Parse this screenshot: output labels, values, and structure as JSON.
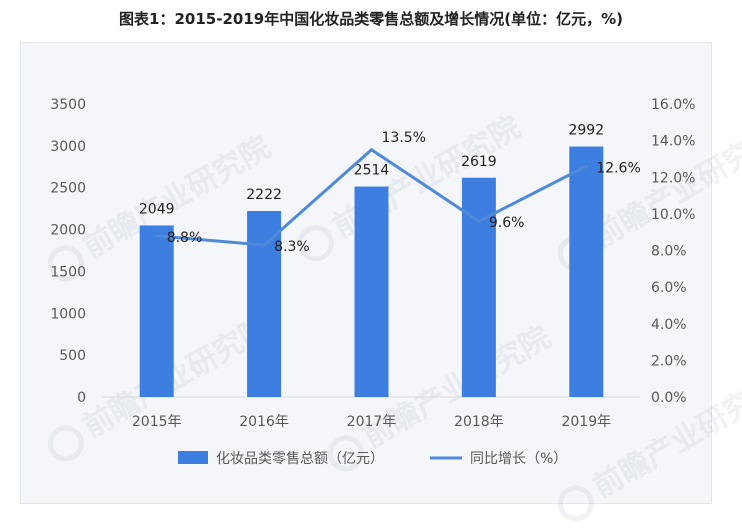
{
  "title": "图表1：2015-2019年中国化妆品类零售总额及增长情况(单位：亿元，%)",
  "watermark": "前瞻产业研究院",
  "colors": {
    "bar": "#3d7fe0",
    "line": "#4f8ad9",
    "axis": "#d9d9d9",
    "text": "#595959",
    "label": "#222222"
  },
  "chart_data": {
    "type": "bar",
    "categories": [
      "2015年",
      "2016年",
      "2017年",
      "2018年",
      "2019年"
    ],
    "series": [
      {
        "name": "化妆品类零售总额（亿元）",
        "type": "bar",
        "axis": "left",
        "values": [
          2049,
          2222,
          2514,
          2619,
          2992
        ],
        "labels": [
          "2049",
          "2222",
          "2514",
          "2619",
          "2992"
        ]
      },
      {
        "name": "同比增长（%）",
        "type": "line",
        "axis": "right",
        "values": [
          8.8,
          8.3,
          13.5,
          9.6,
          12.6
        ],
        "labels": [
          "8.8%",
          "8.3%",
          "13.5%",
          "9.6%",
          "12.6%"
        ]
      }
    ],
    "y_left": {
      "min": 0,
      "max": 3500,
      "ticks": [
        "0",
        "500",
        "1000",
        "1500",
        "2000",
        "2500",
        "3000",
        "3500"
      ]
    },
    "y_right": {
      "min": 0,
      "max": 16,
      "ticks": [
        "0.0%",
        "2.0%",
        "4.0%",
        "6.0%",
        "8.0%",
        "10.0%",
        "12.0%",
        "14.0%",
        "16.0%"
      ]
    },
    "grid": false,
    "legend_position": "bottom"
  }
}
